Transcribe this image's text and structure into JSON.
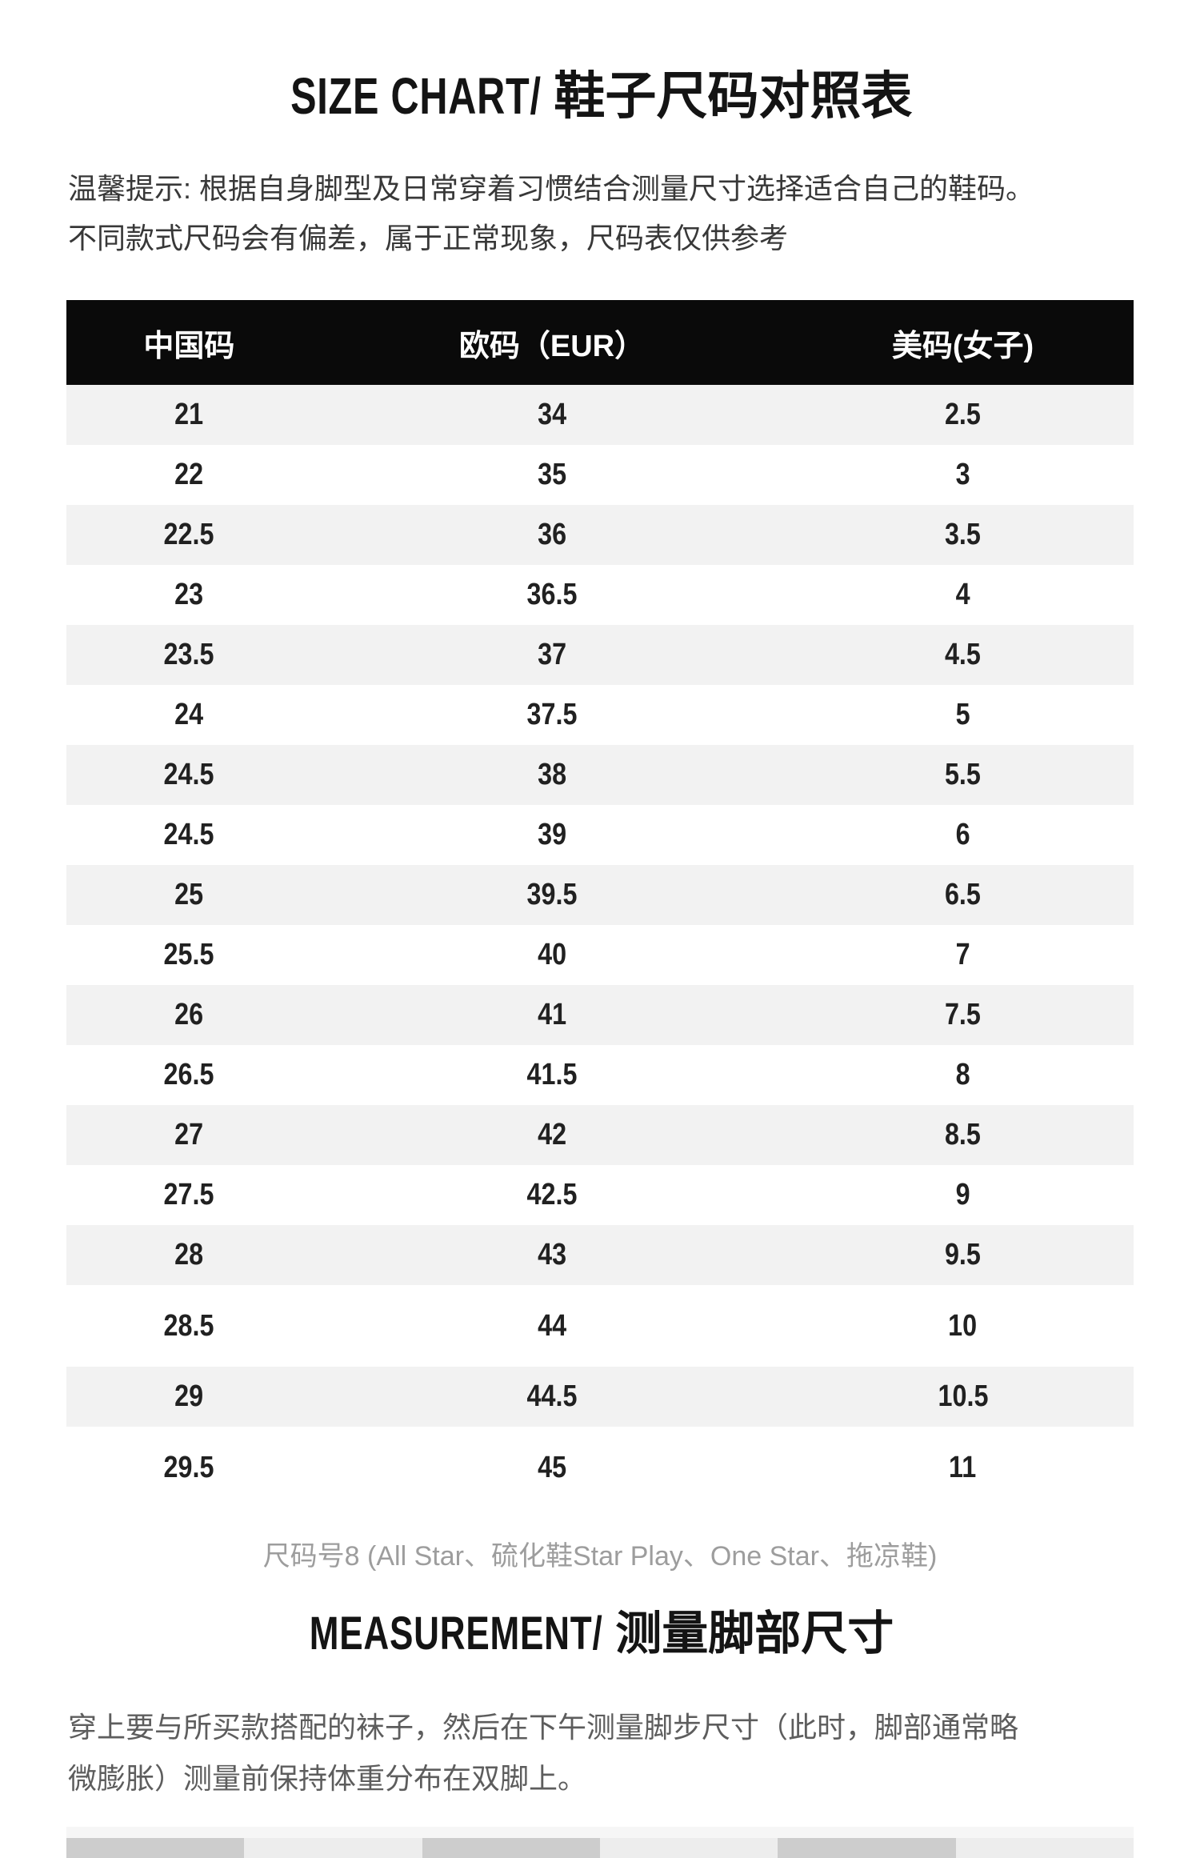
{
  "header": {
    "title_en": "SIZE CHART/",
    "title_zh": "鞋子尺码对照表",
    "note_line1": "温馨提示: 根据自身脚型及日常穿着习惯结合测量尺寸选择适合自己的鞋码。",
    "note_line2": "不同款式尺码会有偏差，属于正常现象，尺码表仅供参考"
  },
  "size_table": {
    "columns": [
      "中国码",
      "欧码（EUR）",
      "美码(女子)"
    ],
    "rows": [
      [
        "21",
        "34",
        "2.5"
      ],
      [
        "22",
        "35",
        "3"
      ],
      [
        "22.5",
        "36",
        "3.5"
      ],
      [
        "23",
        "36.5",
        "4"
      ],
      [
        "23.5",
        "37",
        "4.5"
      ],
      [
        "24",
        "37.5",
        "5"
      ],
      [
        "24.5",
        "38",
        "5.5"
      ],
      [
        "24.5",
        "39",
        "6"
      ],
      [
        "25",
        "39.5",
        "6.5"
      ],
      [
        "25.5",
        "40",
        "7"
      ],
      [
        "26",
        "41",
        "7.5"
      ],
      [
        "26.5",
        "41.5",
        "8"
      ],
      [
        "27",
        "42",
        "8.5"
      ],
      [
        "27.5",
        "42.5",
        "9"
      ],
      [
        "28",
        "43",
        "9.5"
      ],
      [
        "28.5",
        "44",
        "10"
      ],
      [
        "29",
        "44.5",
        "10.5"
      ],
      [
        "29.5",
        "45",
        "11"
      ]
    ]
  },
  "footnote": "尺码号8 (All Star、硫化鞋Star Play、One Star、拖凉鞋)",
  "measurement": {
    "title_en": "MEASUREMENT/",
    "title_zh": "测量脚部尺寸",
    "body_line1": "穿上要与所买款搭配的袜子，然后在下午测量脚步尺寸（此时，脚部通常略",
    "body_line2": "微膨胀）测量前保持体重分布在双脚上。"
  },
  "bottom_table": {
    "visible_cells": 6
  },
  "colors": {
    "header_bg": "#0a0a0a",
    "header_text": "#ffffff",
    "row_alt_bg": "#f2f2f2",
    "footnote_text": "#9d9d9d",
    "bottom_cell_dark": "#cdcdcd",
    "bottom_cell_light": "#ededed"
  }
}
